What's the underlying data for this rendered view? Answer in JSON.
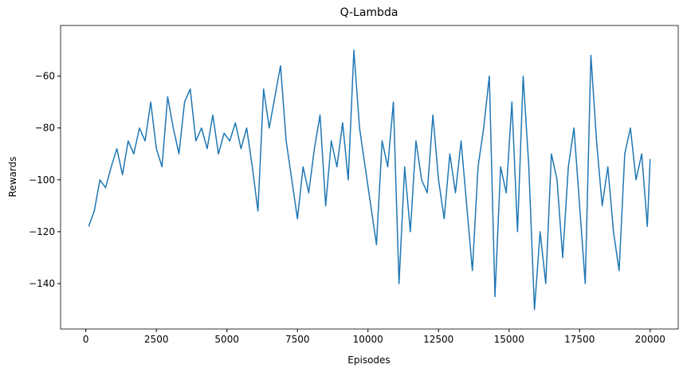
{
  "chart_data": {
    "type": "line",
    "title": "Q-Lambda",
    "x_label": "Episodes",
    "y_label": "Rewards",
    "x": [
      100,
      300,
      500,
      700,
      900,
      1100,
      1300,
      1500,
      1700,
      1900,
      2100,
      2300,
      2500,
      2700,
      2900,
      3100,
      3300,
      3500,
      3700,
      3900,
      4100,
      4300,
      4500,
      4700,
      4900,
      5100,
      5300,
      5500,
      5700,
      5900,
      6100,
      6300,
      6500,
      6700,
      6900,
      7100,
      7300,
      7500,
      7700,
      7900,
      8100,
      8300,
      8500,
      8700,
      8900,
      9100,
      9300,
      9500,
      9700,
      9900,
      10100,
      10300,
      10500,
      10700,
      10900,
      11100,
      11300,
      11500,
      11700,
      11900,
      12100,
      12300,
      12500,
      12700,
      12900,
      13100,
      13300,
      13500,
      13700,
      13900,
      14100,
      14300,
      14500,
      14700,
      14900,
      15100,
      15300,
      15500,
      15700,
      15900,
      16100,
      16300,
      16500,
      16700,
      16900,
      17100,
      17300,
      17500,
      17700,
      17900,
      18100,
      18300,
      18500,
      18700,
      18900,
      19100,
      19300,
      19500,
      19700,
      19900,
      20000
    ],
    "series": [
      {
        "name": "Rewards",
        "color": "#1f77b4",
        "values": [
          -118,
          -112,
          -100,
          -103,
          -95,
          -88,
          -98,
          -85,
          -90,
          -80,
          -85,
          -70,
          -88,
          -95,
          -68,
          -80,
          -90,
          -70,
          -65,
          -85,
          -80,
          -88,
          -75,
          -90,
          -82,
          -85,
          -78,
          -88,
          -80,
          -95,
          -112,
          -65,
          -80,
          -68,
          -56,
          -85,
          -100,
          -115,
          -95,
          -105,
          -88,
          -75,
          -110,
          -85,
          -95,
          -78,
          -100,
          -50,
          -80,
          -95,
          -110,
          -125,
          -85,
          -95,
          -70,
          -140,
          -95,
          -120,
          -85,
          -100,
          -105,
          -75,
          -100,
          -115,
          -90,
          -105,
          -85,
          -110,
          -135,
          -95,
          -80,
          -60,
          -145,
          -95,
          -105,
          -70,
          -120,
          -60,
          -95,
          -150,
          -120,
          -140,
          -90,
          -100,
          -130,
          -95,
          -80,
          -110,
          -140,
          -52,
          -85,
          -110,
          -95,
          -120,
          -135,
          -90,
          -80,
          -100,
          -90,
          -118,
          -92
        ]
      }
    ],
    "xlim": [
      -895,
      20995
    ],
    "ylim": [
      -157.5,
      -40.5
    ],
    "xticks": [
      0,
      2500,
      5000,
      7500,
      10000,
      12500,
      15000,
      17500,
      20000
    ],
    "yticks": [
      {
        "value": -140,
        "label": "−140"
      },
      {
        "value": -120,
        "label": "−120"
      },
      {
        "value": -100,
        "label": "−100"
      },
      {
        "value": -80,
        "label": "−80"
      },
      {
        "value": -60,
        "label": "−60"
      }
    ]
  }
}
